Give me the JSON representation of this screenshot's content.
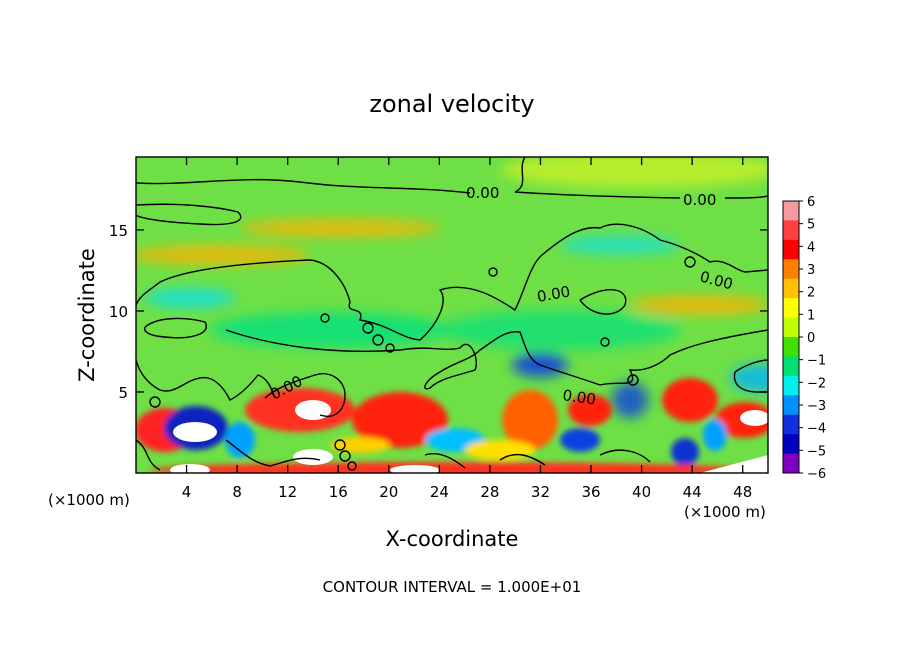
{
  "chart_data": {
    "type": "heatmap",
    "title": "zonal velocity",
    "xlabel": "X-coordinate",
    "ylabel": "Z-coordinate",
    "x_unit": "(×1000 m)",
    "x_unit_right": "(×1000 m)",
    "xlim": [
      0,
      50
    ],
    "ylim": [
      0,
      19.5
    ],
    "x_ticks": [
      4,
      8,
      12,
      16,
      20,
      24,
      28,
      32,
      36,
      40,
      44,
      48
    ],
    "y_ticks": [
      5,
      10,
      15
    ],
    "colorbar": {
      "ticks": [
        "6",
        "5",
        "4",
        "3",
        "2",
        "1",
        "0",
        "−1",
        "−2",
        "−3",
        "−4",
        "−5",
        "−6"
      ],
      "range": [
        -6,
        6
      ],
      "colors": [
        "#f49aa0",
        "#ff4040",
        "#ff0000",
        "#ff8000",
        "#ffc000",
        "#ffff00",
        "#c0ff00",
        "#40e000",
        "#00e070",
        "#00f0f0",
        "#0090ff",
        "#1030e0",
        "#0000c0",
        "#8000c0"
      ]
    },
    "contour_labels": [
      "0.00",
      "0.00",
      "0.00",
      "0.00",
      "0.00",
      "0.00"
    ],
    "footer": "CONTOUR INTERVAL = 1.000E+01"
  }
}
